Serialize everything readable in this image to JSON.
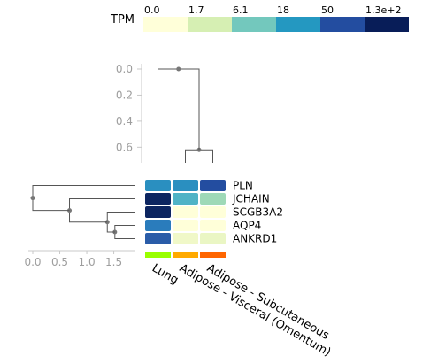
{
  "chart_data": {
    "type": "heatmap",
    "legend": {
      "title": "TPM",
      "tick_labels": [
        "0.0",
        "1.7",
        "6.1",
        "18",
        "50",
        "1.3e+2"
      ],
      "colors": [
        "#ffffd9",
        "#d6efb3",
        "#73c8bd",
        "#2498c1",
        "#234da0",
        "#081d58"
      ]
    },
    "columns": [
      "Lung",
      "Adipose - Visceral (Omentum)",
      "Adipose - Subcutaneous"
    ],
    "column_colors": [
      "#99ff00",
      "#ffaa00",
      "#ff6600"
    ],
    "rows": [
      "PLN",
      "JCHAIN",
      "SCGB3A2",
      "AQP4",
      "ANKRD1"
    ],
    "cell_colors": [
      [
        "#2a8fc0",
        "#2a8fc0",
        "#234da0"
      ],
      [
        "#0c2560",
        "#4fb3c6",
        "#9ed9b7"
      ],
      [
        "#0c2560",
        "#ffffd9",
        "#ffffd9"
      ],
      [
        "#2a7cbc",
        "#ffffd9",
        "#ffffd9"
      ],
      [
        "#2a5ca8",
        "#f0f8c8",
        "#eaf6c4"
      ]
    ],
    "column_dendrogram": {
      "axis_ticks": [
        "0.0",
        "0.2",
        "0.4",
        "0.6"
      ],
      "axis_range": [
        0.0,
        0.72
      ],
      "merges": [
        {
          "left": 1,
          "right": 2,
          "height": 0.62
        },
        {
          "left": 0,
          "right": "m0",
          "height": 0.0
        }
      ]
    },
    "row_dendrogram": {
      "axis_ticks": [
        "0.0",
        "0.5",
        "1.0",
        "1.5"
      ],
      "axis_range": [
        0.0,
        1.9
      ],
      "merges": [
        {
          "left": 3,
          "right": 4,
          "height": 1.52
        },
        {
          "left": 2,
          "right": "m0",
          "height": 1.38
        },
        {
          "left": 1,
          "right": "m1",
          "height": 0.68
        },
        {
          "left": 0,
          "right": "m2",
          "height": 0.0
        }
      ]
    }
  }
}
